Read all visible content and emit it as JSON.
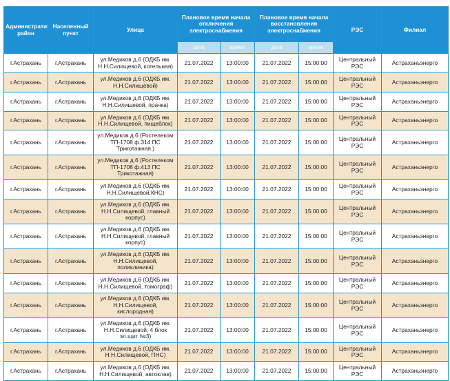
{
  "table": {
    "headers": [
      "Административный район",
      "Населенный пункт",
      "Улица",
      "Плановое время начала отключения электроснабжения",
      "Плановое время начала восстановления электроснабжения",
      "РЭС",
      "Филиал"
    ],
    "subheaders": [
      "дата",
      "время",
      "дата",
      "время"
    ],
    "rows": [
      {
        "district": "г.Астрахань",
        "locality": "г.Астрахань",
        "street": "ул.Медиков д.6 (ОДКБ им. Н.Н.Силищевой, котельная)",
        "start_date": "21.07.2022",
        "start_time": "13:00:00",
        "end_date": "21.07.2022",
        "end_time": "15:00:00",
        "res": "Центральный РЭС",
        "branch": "Астраханьэнерго"
      },
      {
        "district": "г.Астрахань",
        "locality": "г.Астрахань",
        "street": "ул.Медиков д.6 (ОДКБ им. Н.Н.Силищевой)",
        "start_date": "21.07.2022",
        "start_time": "13:00:00",
        "end_date": "21.07.2022",
        "end_time": "15:00:00",
        "res": "Центральный РЭС",
        "branch": "Астраханьэнерго"
      },
      {
        "district": "г.Астрахань",
        "locality": "г.Астрахань",
        "street": "ул.Медиков д.6 (ОДКБ им. Н.Н.Силищевой, прачка)",
        "start_date": "21.07.2022",
        "start_time": "13:00:00",
        "end_date": "21.07.2022",
        "end_time": "15:00:00",
        "res": "Центральный РЭС",
        "branch": "Астраханьэнерго"
      },
      {
        "district": "г.Астрахань",
        "locality": "г.Астрахань",
        "street": "ул.Медиков д.6 (ОДКБ им. Н.Н.Силищевой, пищеблок)",
        "start_date": "21.07.2022",
        "start_time": "13:00:00",
        "end_date": "21.07.2022",
        "end_time": "15:00:00",
        "res": "Центральный РЭС",
        "branch": "Астраханьэнерго"
      },
      {
        "district": "г.Астрахань",
        "locality": "г.Астрахань",
        "street": "ул.Медиков д.6 (Ростелеком ТП-1708 ф.314 ПС Трикотажная.)",
        "start_date": "21.07.2022",
        "start_time": "13:00:00",
        "end_date": "21.07.2022",
        "end_time": "15:00:00",
        "res": "Центральный РЭС",
        "branch": "Астраханьэнерго"
      },
      {
        "district": "г.Астрахань",
        "locality": "г.Астрахань",
        "street": "ул.Медиков д.6 (Ростелеком ТП-1708 ф.413 ПС Трикотажная)",
        "start_date": "21.07.2022",
        "start_time": "13:00:00",
        "end_date": "21.07.2022",
        "end_time": "15:00:00",
        "res": "Центральный РЭС",
        "branch": "Астраханьэнерго"
      },
      {
        "district": "г.Астрахань",
        "locality": "г.Астрахань",
        "street": "ул.Медиков д.6 (ОДКБ им. Н.Н.Силищевой,КНС)",
        "start_date": "21.07.2022",
        "start_time": "13:00:00",
        "end_date": "21.07.2022",
        "end_time": "15:00:00",
        "res": "Центральный РЭС",
        "branch": "Астраханьэнерго"
      },
      {
        "district": "г.Астрахань",
        "locality": "г.Астрахань",
        "street": "ул.Медиков д.6 (ОДКБ им. Н.Н.Силищевой, главный корпус)",
        "start_date": "21.07.2022",
        "start_time": "13:00:00",
        "end_date": "21.07.2022",
        "end_time": "15:00:00",
        "res": "Центральный РЭС",
        "branch": "Астраханьэнерго"
      },
      {
        "district": "г.Астрахань",
        "locality": "г.Астрахань",
        "street": "ул.Медиков д.6 (ОДКБ им. Н.Н.Силищевой, главный корпус)",
        "start_date": "21.07.2022",
        "start_time": "13:00:00",
        "end_date": "21.07.2022",
        "end_time": "15:00:00",
        "res": "Центральный РЭС",
        "branch": "Астраханьэнерго"
      },
      {
        "district": "г.Астрахань",
        "locality": "г.Астрахань",
        "street": "ул.Медиков д.6 (ОДКБ им. Н.Н.Силищевой, поликлиника)",
        "start_date": "21.07.2022",
        "start_time": "13:00:00",
        "end_date": "21.07.2022",
        "end_time": "15:00:00",
        "res": "Центральный РЭС",
        "branch": "Астраханьэнерго"
      },
      {
        "district": "г.Астрахань",
        "locality": "г.Астрахань",
        "street": "ул.Медиков д.6 (ОДКБ им. Н.Н.Силищевой, томограф)",
        "start_date": "21.07.2022",
        "start_time": "13:00:00",
        "end_date": "21.07.2022",
        "end_time": "15:00:00",
        "res": "Центральный РЭС",
        "branch": "Астраханьэнерго"
      },
      {
        "district": "г.Астрахань",
        "locality": "г.Астрахань",
        "street": "ул.Медиков д.6 (ОДКБ им. Н.Н.Силищевой, кислородная)",
        "start_date": "21.07.2022",
        "start_time": "13:00:00",
        "end_date": "21.07.2022",
        "end_time": "15:00:00",
        "res": "Центральный РЭС",
        "branch": "Астраханьэнерго"
      },
      {
        "district": "г.Астрахань",
        "locality": "г.Астрахань",
        "street": "ул.Медиков д.6 (ОДКБ им. Н.Н.Силищевой, 4 блок эл.щит №3)",
        "start_date": "21.07.2022",
        "start_time": "13:00:00",
        "end_date": "21.07.2022",
        "end_time": "15:00:00",
        "res": "Центральный РЭС",
        "branch": "Астраханьэнерго"
      },
      {
        "district": "г.Астрахань",
        "locality": "г.Астрахань",
        "street": "ул.Медиков д.6 (ОДКБ им. Н.Н.Силищевой, ПНС)",
        "start_date": "21.07.2022",
        "start_time": "13:00:00",
        "end_date": "21.07.2022",
        "end_time": "15:00:00",
        "res": "Центральный РЭС",
        "branch": "Астраханьэнерго"
      },
      {
        "district": "г.Астрахань",
        "locality": "г.Астрахань",
        "street": "ул.Медиков д.6 (ОДКБ им. Н.Н.Силищевой, автоклав)",
        "start_date": "21.07.2022",
        "start_time": "13:00:00",
        "end_date": "21.07.2022",
        "end_time": "15:00:00",
        "res": "Центральный РЭС",
        "branch": "Астраханьэнерго"
      }
    ]
  },
  "colors": {
    "header_bg": "#1e90d3",
    "subheader_bg": "#bcdcf0",
    "row_alt_bg": "#f5e4cc",
    "border": "#2596cf"
  }
}
